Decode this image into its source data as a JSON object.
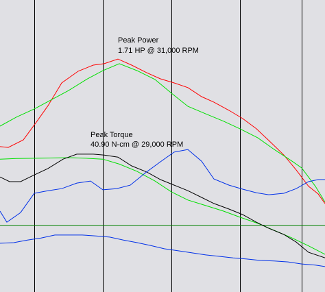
{
  "chart_data": {
    "type": "line",
    "xlim": [
      20000,
      43700
    ],
    "ylim": [
      0,
      100
    ],
    "vertical_gridlines_x": [
      22500,
      27500,
      32500,
      37500,
      42000
    ],
    "reference_line_y": 23,
    "annotations": [
      {
        "line1": "Peak Power",
        "line2": "1.71 HP @ 31,000 RPM"
      },
      {
        "line1": "Peak Torque",
        "line2": "40.90 N-cm @ 29,000 RPM"
      }
    ],
    "series": [
      {
        "color": "#ff0000",
        "points": [
          [
            20000,
            49.8
          ],
          [
            20600,
            49.5
          ],
          [
            21700,
            52.1
          ],
          [
            22700,
            58.5
          ],
          [
            23500,
            63.8
          ],
          [
            24500,
            71.6
          ],
          [
            25700,
            75.6
          ],
          [
            26800,
            77.7
          ],
          [
            27600,
            78.2
          ],
          [
            28600,
            79.8
          ],
          [
            29600,
            77.7
          ],
          [
            30700,
            75.1
          ],
          [
            31700,
            73.0
          ],
          [
            32700,
            71.6
          ],
          [
            33700,
            70.0
          ],
          [
            34700,
            66.9
          ],
          [
            35600,
            65.0
          ],
          [
            36700,
            62.2
          ],
          [
            37700,
            59.4
          ],
          [
            38700,
            55.9
          ],
          [
            39600,
            51.9
          ],
          [
            40700,
            46.9
          ],
          [
            41600,
            41.8
          ],
          [
            42500,
            36.2
          ],
          [
            43200,
            33.6
          ],
          [
            43700,
            30.3
          ]
        ]
      },
      {
        "color": "#00e000",
        "points": [
          [
            20000,
            56.8
          ],
          [
            21200,
            59.9
          ],
          [
            22500,
            62.7
          ],
          [
            23700,
            65.7
          ],
          [
            25000,
            69.0
          ],
          [
            26300,
            72.8
          ],
          [
            27500,
            75.8
          ],
          [
            28700,
            78.2
          ],
          [
            30000,
            75.8
          ],
          [
            31300,
            72.8
          ],
          [
            32500,
            68.1
          ],
          [
            33700,
            63.6
          ],
          [
            35000,
            61.0
          ],
          [
            36300,
            58.5
          ],
          [
            37500,
            55.9
          ],
          [
            38800,
            52.8
          ],
          [
            40000,
            48.8
          ],
          [
            41300,
            44.8
          ],
          [
            42000,
            42.5
          ],
          [
            43000,
            36.2
          ],
          [
            43700,
            30.8
          ]
        ]
      },
      {
        "color": "#00e000",
        "points": [
          [
            20000,
            45.5
          ],
          [
            21200,
            45.7
          ],
          [
            22500,
            45.8
          ],
          [
            23700,
            45.9
          ],
          [
            25000,
            46.0
          ],
          [
            26300,
            45.8
          ],
          [
            27500,
            45.5
          ],
          [
            28700,
            43.8
          ],
          [
            30000,
            41.3
          ],
          [
            31300,
            38.0
          ],
          [
            32500,
            34.3
          ],
          [
            33700,
            31.5
          ],
          [
            35000,
            29.6
          ],
          [
            36300,
            27.7
          ],
          [
            37500,
            25.6
          ],
          [
            38800,
            23.5
          ],
          [
            40000,
            21.1
          ],
          [
            41300,
            18.5
          ],
          [
            42500,
            15.8
          ],
          [
            43700,
            12.9
          ]
        ]
      },
      {
        "color": "#000000",
        "points": [
          [
            20000,
            39.4
          ],
          [
            20700,
            37.8
          ],
          [
            21500,
            37.8
          ],
          [
            22500,
            40.1
          ],
          [
            23500,
            42.3
          ],
          [
            24600,
            45.5
          ],
          [
            25600,
            47.2
          ],
          [
            26800,
            47.2
          ],
          [
            27600,
            46.9
          ],
          [
            28600,
            46.2
          ],
          [
            29600,
            43.2
          ],
          [
            30700,
            41.1
          ],
          [
            31700,
            38.5
          ],
          [
            32700,
            36.6
          ],
          [
            33700,
            34.7
          ],
          [
            34700,
            32.4
          ],
          [
            35600,
            30.3
          ],
          [
            36700,
            28.4
          ],
          [
            37700,
            26.5
          ],
          [
            38700,
            23.9
          ],
          [
            39600,
            21.8
          ],
          [
            40700,
            19.7
          ],
          [
            41600,
            17.1
          ],
          [
            42500,
            13.6
          ],
          [
            43700,
            11.7
          ]
        ]
      },
      {
        "color": "#0030e8",
        "points": [
          [
            20000,
            27.7
          ],
          [
            20500,
            23.9
          ],
          [
            21500,
            27.2
          ],
          [
            22500,
            33.8
          ],
          [
            23500,
            34.7
          ],
          [
            24500,
            35.4
          ],
          [
            25600,
            37.3
          ],
          [
            26600,
            38.0
          ],
          [
            27500,
            35.0
          ],
          [
            28500,
            35.4
          ],
          [
            29500,
            36.6
          ],
          [
            30600,
            40.8
          ],
          [
            31700,
            44.6
          ],
          [
            32700,
            47.9
          ],
          [
            33700,
            48.8
          ],
          [
            34700,
            44.8
          ],
          [
            35600,
            38.7
          ],
          [
            36700,
            36.6
          ],
          [
            37700,
            35.2
          ],
          [
            38700,
            34.0
          ],
          [
            39600,
            33.3
          ],
          [
            40700,
            33.8
          ],
          [
            41600,
            35.4
          ],
          [
            42500,
            37.8
          ],
          [
            43200,
            38.5
          ],
          [
            43700,
            38.5
          ]
        ]
      },
      {
        "color": "#0030e8",
        "points": [
          [
            20000,
            16.7
          ],
          [
            21000,
            16.9
          ],
          [
            22000,
            17.8
          ],
          [
            23000,
            18.5
          ],
          [
            24000,
            19.5
          ],
          [
            25000,
            19.5
          ],
          [
            26000,
            19.5
          ],
          [
            27000,
            19.2
          ],
          [
            28000,
            18.8
          ],
          [
            29000,
            17.8
          ],
          [
            30000,
            16.9
          ],
          [
            31000,
            15.9
          ],
          [
            32000,
            14.8
          ],
          [
            33000,
            14.1
          ],
          [
            34000,
            13.4
          ],
          [
            35000,
            12.7
          ],
          [
            36000,
            12.2
          ],
          [
            37000,
            11.7
          ],
          [
            38000,
            11.3
          ],
          [
            39000,
            10.8
          ],
          [
            40000,
            10.6
          ],
          [
            41000,
            10.3
          ],
          [
            42000,
            9.6
          ],
          [
            43000,
            9.2
          ],
          [
            43700,
            8.7
          ]
        ]
      }
    ]
  }
}
